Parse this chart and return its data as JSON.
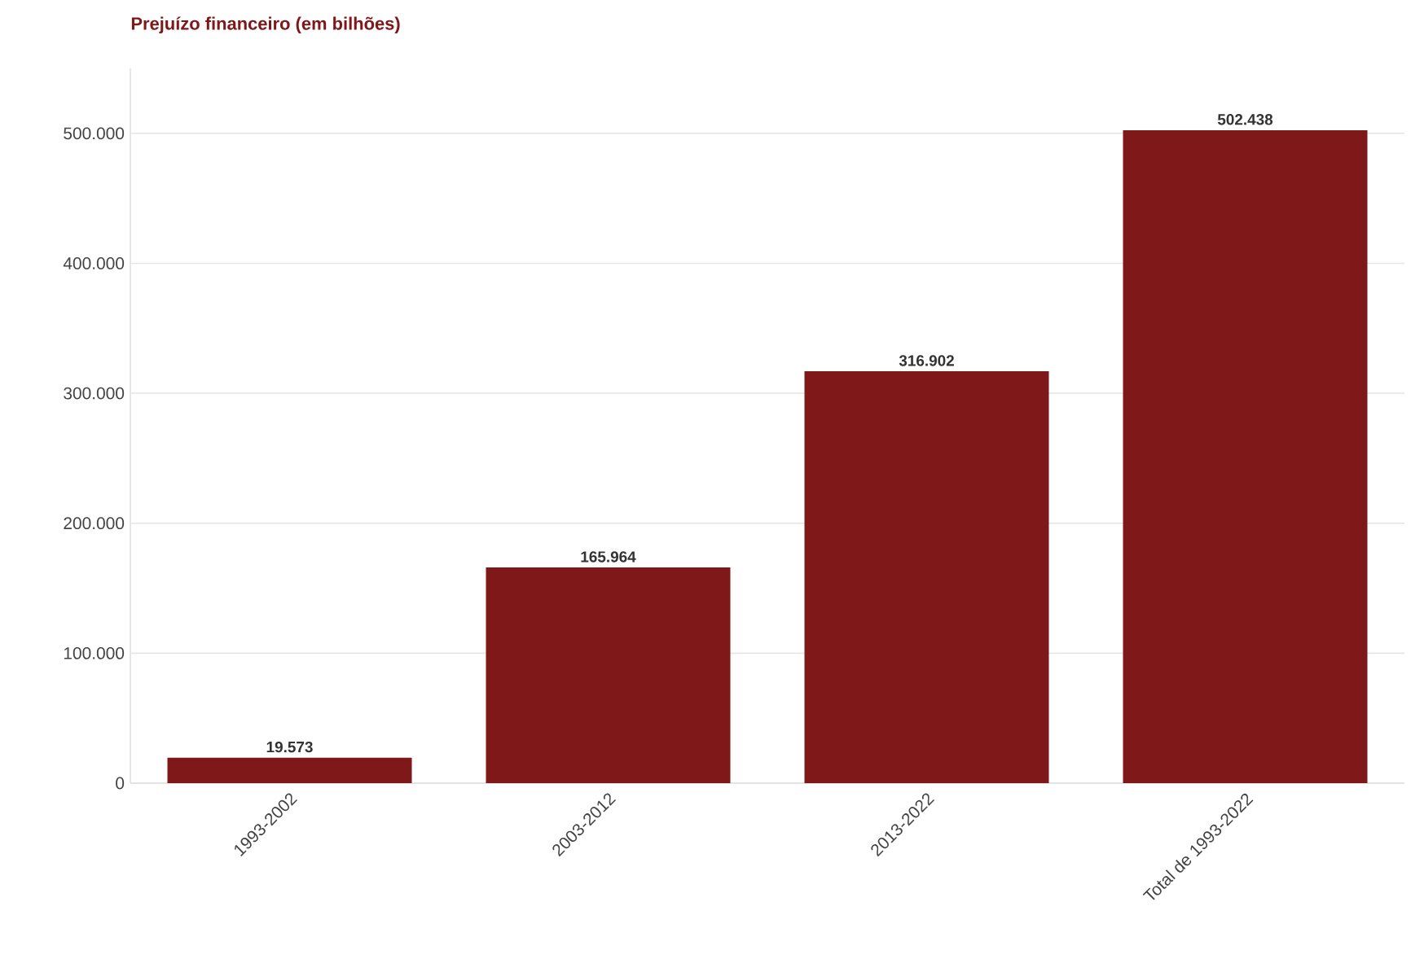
{
  "chart_data": {
    "type": "bar",
    "title": "Prejuízo financeiro (em bilhões)",
    "categories": [
      "1993-2002",
      "2003-2012",
      "2013-2022",
      "Total de 1993-2022"
    ],
    "values": [
      19573,
      165964,
      316902,
      502438
    ],
    "value_labels": [
      "19.573",
      "165.964",
      "316.902",
      "502.438"
    ],
    "color": "#7f1818",
    "ylim": [
      0,
      550000
    ],
    "yticks": [
      0,
      {
        "value": 100000,
        "label": "100.000"
      },
      {
        "value": 200000,
        "label": "200.000"
      },
      {
        "value": 300000,
        "label": "300.000"
      },
      {
        "value": 400000,
        "label": "400.000"
      },
      {
        "value": 500000,
        "label": "500.000"
      }
    ],
    "grid": "y"
  }
}
